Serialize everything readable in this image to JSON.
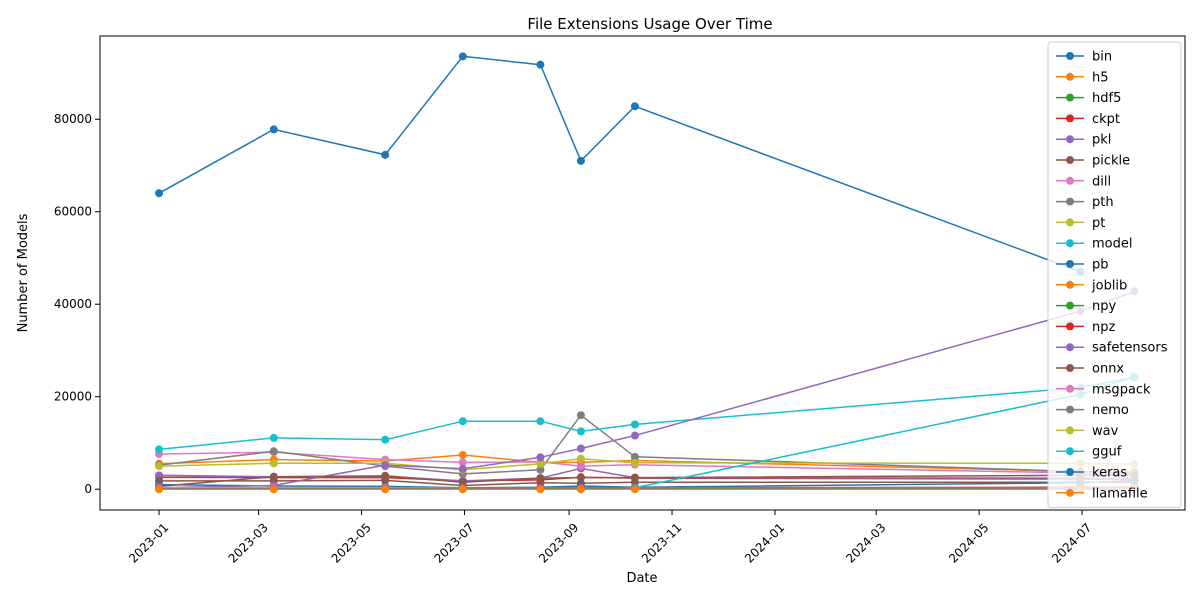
{
  "chart_data": {
    "type": "line",
    "title": "File Extensions Usage Over Time",
    "xlabel": "Date",
    "ylabel": "Number of Models",
    "x": [
      "2023-01-01",
      "2023-03-10",
      "2023-05-15",
      "2023-06-30",
      "2023-08-15",
      "2023-09-08",
      "2023-10-10",
      "2024-06-30",
      "2024-08-01"
    ],
    "x_ticks": [
      "2023-01",
      "2023-03",
      "2023-05",
      "2023-07",
      "2023-09",
      "2023-11",
      "2024-01",
      "2024-03",
      "2024-05",
      "2024-07"
    ],
    "xlim": [
      "2022-11-27",
      "2024-08-31"
    ],
    "ylim": [
      -4500,
      98000
    ],
    "y_ticks": [
      0,
      20000,
      40000,
      60000,
      80000
    ],
    "grid": false,
    "legend_position": "top-right",
    "series": [
      {
        "name": "bin",
        "color": "#1f77b4",
        "values": [
          64000,
          77800,
          72300,
          93600,
          91800,
          71000,
          82800,
          47000,
          null
        ]
      },
      {
        "name": "h5",
        "color": "#ff7f0e",
        "values": [
          5500,
          6400,
          6100,
          7400,
          5800,
          5800,
          6200,
          3800,
          3400
        ]
      },
      {
        "name": "hdf5",
        "color": "#2ca02c",
        "values": [
          200,
          200,
          200,
          200,
          200,
          200,
          200,
          200,
          200
        ]
      },
      {
        "name": "ckpt",
        "color": "#d62728",
        "values": [
          2600,
          2500,
          2500,
          1800,
          2000,
          2600,
          2400,
          2200,
          2000
        ]
      },
      {
        "name": "pkl",
        "color": "#9467bd",
        "values": [
          3000,
          2700,
          2800,
          1800,
          2400,
          4500,
          2500,
          2400,
          2300
        ]
      },
      {
        "name": "pickle",
        "color": "#8c564b",
        "values": [
          1800,
          1800,
          1900,
          800,
          1400,
          1300,
          1500,
          1500,
          1500
        ]
      },
      {
        "name": "dill",
        "color": "#e377c2",
        "values": [
          7600,
          8000,
          6400,
          5800,
          5900,
          5000,
          5300,
          3500,
          3200
        ]
      },
      {
        "name": "pth",
        "color": "#7f7f7f",
        "values": [
          5200,
          8200,
          5000,
          3300,
          4200,
          16000,
          7000,
          3800,
          3700
        ]
      },
      {
        "name": "pt",
        "color": "#bcbd22",
        "values": [
          5000,
          5600,
          5600,
          4200,
          5500,
          6600,
          5700,
          5600,
          5400
        ]
      },
      {
        "name": "model",
        "color": "#17becf",
        "values": [
          8600,
          11100,
          10700,
          14700,
          14700,
          12500,
          14000,
          22000,
          24200
        ]
      },
      {
        "name": "pb",
        "color": "#1f77b4",
        "values": [
          1000,
          700,
          600,
          300,
          400,
          700,
          400,
          1400,
          1800
        ]
      },
      {
        "name": "joblib",
        "color": "#ff7f0e",
        "values": [
          100,
          100,
          100,
          100,
          100,
          100,
          100,
          100,
          100
        ]
      },
      {
        "name": "npy",
        "color": "#2ca02c",
        "values": [
          100,
          100,
          100,
          100,
          100,
          100,
          100,
          100,
          100
        ]
      },
      {
        "name": "npz",
        "color": "#d62728",
        "values": [
          200,
          300,
          300,
          300,
          300,
          300,
          300,
          400,
          400
        ]
      },
      {
        "name": "safetensors",
        "color": "#9467bd",
        "values": [
          300,
          800,
          5200,
          4400,
          6900,
          8800,
          11600,
          38500,
          42800
        ]
      },
      {
        "name": "onnx",
        "color": "#8c564b",
        "values": [
          600,
          2700,
          2900,
          1500,
          2400,
          2500,
          2500,
          3000,
          3100
        ]
      },
      {
        "name": "msgpack",
        "color": "#e377c2",
        "values": [
          300,
          300,
          300,
          200,
          200,
          200,
          200,
          200,
          200
        ]
      },
      {
        "name": "nemo",
        "color": "#7f7f7f",
        "values": [
          100,
          100,
          100,
          100,
          100,
          100,
          100,
          100,
          100
        ]
      },
      {
        "name": "wav",
        "color": "#bcbd22",
        "values": [
          100,
          100,
          100,
          100,
          100,
          100,
          100,
          100,
          100
        ]
      },
      {
        "name": "gguf",
        "color": "#17becf",
        "values": [
          0,
          0,
          0,
          0,
          0,
          0,
          300,
          20500,
          24300
        ]
      },
      {
        "name": "keras",
        "color": "#1f77b4",
        "values": [
          100,
          100,
          100,
          100,
          100,
          100,
          100,
          100,
          100
        ]
      },
      {
        "name": "llamafile",
        "color": "#ff7f0e",
        "values": [
          0,
          0,
          0,
          0,
          0,
          0,
          0,
          0,
          0
        ]
      }
    ]
  }
}
